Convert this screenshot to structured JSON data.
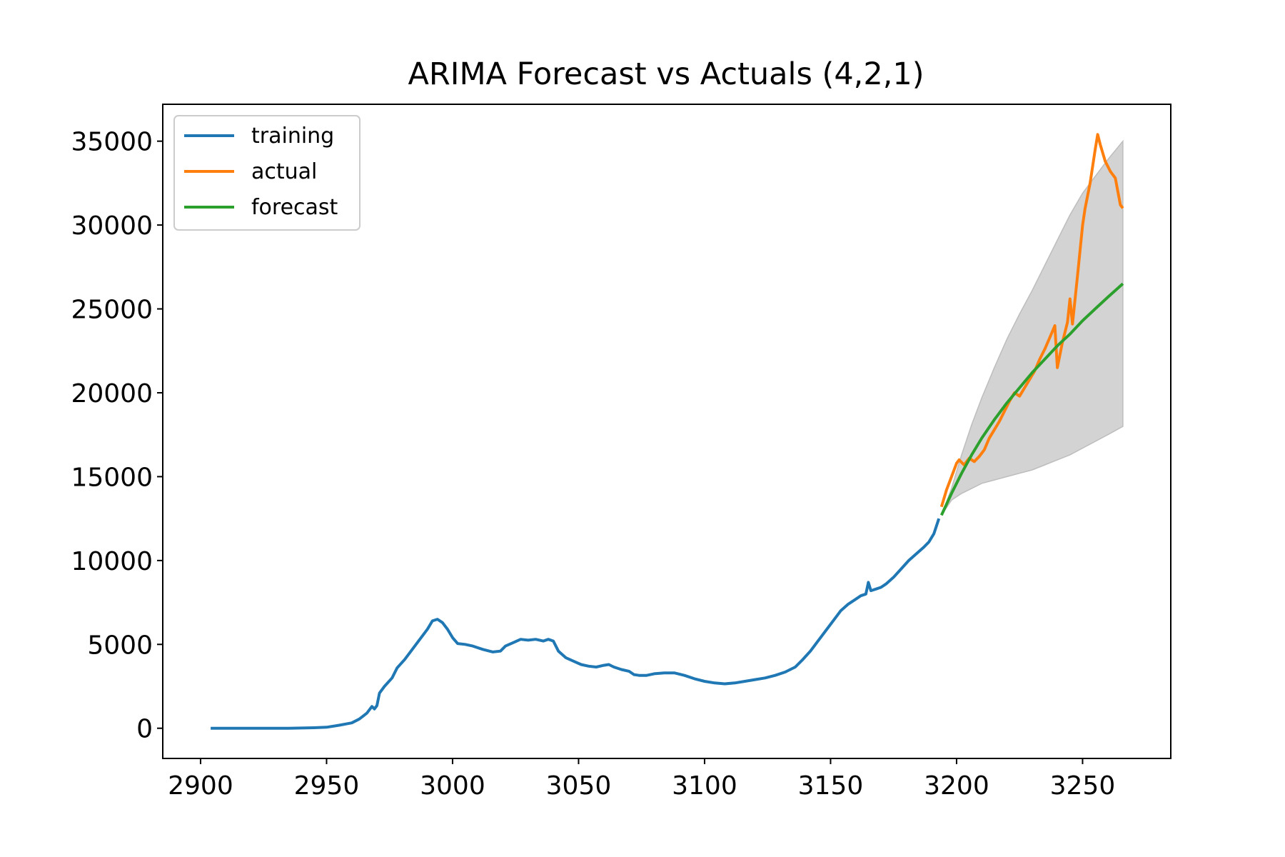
{
  "chart_data": {
    "type": "line",
    "title": "ARIMA Forecast vs Actuals (4,2,1)",
    "xlabel": "",
    "ylabel": "",
    "xlim": [
      2885,
      3285
    ],
    "ylim": [
      -1800,
      37200
    ],
    "x_ticks": [
      2900,
      2950,
      3000,
      3050,
      3100,
      3150,
      3200,
      3250
    ],
    "y_ticks": [
      0,
      5000,
      10000,
      15000,
      20000,
      25000,
      30000,
      35000
    ],
    "grid": false,
    "legend_position": "top-left",
    "series": [
      {
        "name": "training",
        "color": "#1f77b4",
        "points": [
          [
            2904,
            0
          ],
          [
            2920,
            0
          ],
          [
            2935,
            0
          ],
          [
            2945,
            30
          ],
          [
            2950,
            60
          ],
          [
            2955,
            180
          ],
          [
            2960,
            320
          ],
          [
            2963,
            550
          ],
          [
            2966,
            900
          ],
          [
            2968,
            1300
          ],
          [
            2969,
            1150
          ],
          [
            2970,
            1350
          ],
          [
            2971,
            2100
          ],
          [
            2973,
            2500
          ],
          [
            2976,
            3000
          ],
          [
            2978,
            3600
          ],
          [
            2981,
            4100
          ],
          [
            2984,
            4700
          ],
          [
            2987,
            5300
          ],
          [
            2990,
            5900
          ],
          [
            2992,
            6400
          ],
          [
            2994,
            6500
          ],
          [
            2996,
            6300
          ],
          [
            2998,
            5900
          ],
          [
            3000,
            5400
          ],
          [
            3002,
            5050
          ],
          [
            3005,
            5000
          ],
          [
            3008,
            4900
          ],
          [
            3012,
            4700
          ],
          [
            3016,
            4550
          ],
          [
            3019,
            4600
          ],
          [
            3021,
            4900
          ],
          [
            3024,
            5100
          ],
          [
            3027,
            5300
          ],
          [
            3030,
            5250
          ],
          [
            3033,
            5300
          ],
          [
            3036,
            5200
          ],
          [
            3038,
            5300
          ],
          [
            3040,
            5200
          ],
          [
            3042,
            4600
          ],
          [
            3045,
            4200
          ],
          [
            3048,
            4000
          ],
          [
            3051,
            3800
          ],
          [
            3054,
            3700
          ],
          [
            3057,
            3650
          ],
          [
            3060,
            3750
          ],
          [
            3062,
            3800
          ],
          [
            3064,
            3650
          ],
          [
            3067,
            3500
          ],
          [
            3070,
            3400
          ],
          [
            3072,
            3200
          ],
          [
            3074,
            3150
          ],
          [
            3077,
            3150
          ],
          [
            3080,
            3250
          ],
          [
            3084,
            3300
          ],
          [
            3088,
            3300
          ],
          [
            3092,
            3150
          ],
          [
            3096,
            2950
          ],
          [
            3100,
            2800
          ],
          [
            3104,
            2700
          ],
          [
            3108,
            2650
          ],
          [
            3112,
            2700
          ],
          [
            3116,
            2800
          ],
          [
            3120,
            2900
          ],
          [
            3124,
            3000
          ],
          [
            3128,
            3150
          ],
          [
            3132,
            3350
          ],
          [
            3136,
            3650
          ],
          [
            3139,
            4100
          ],
          [
            3142,
            4600
          ],
          [
            3145,
            5200
          ],
          [
            3148,
            5800
          ],
          [
            3151,
            6400
          ],
          [
            3154,
            7000
          ],
          [
            3157,
            7400
          ],
          [
            3160,
            7700
          ],
          [
            3162,
            7900
          ],
          [
            3164,
            8000
          ],
          [
            3165,
            8700
          ],
          [
            3166,
            8200
          ],
          [
            3168,
            8300
          ],
          [
            3170,
            8400
          ],
          [
            3172,
            8600
          ],
          [
            3175,
            9000
          ],
          [
            3178,
            9500
          ],
          [
            3181,
            10000
          ],
          [
            3184,
            10400
          ],
          [
            3187,
            10800
          ],
          [
            3189,
            11100
          ],
          [
            3191,
            11600
          ],
          [
            3193,
            12500
          ]
        ]
      },
      {
        "name": "actual",
        "color": "#ff7f0e",
        "points": [
          [
            3194,
            13200
          ],
          [
            3196,
            14200
          ],
          [
            3198,
            15000
          ],
          [
            3200,
            15800
          ],
          [
            3201,
            16000
          ],
          [
            3203,
            15700
          ],
          [
            3205,
            16100
          ],
          [
            3207,
            15900
          ],
          [
            3209,
            16200
          ],
          [
            3211,
            16600
          ],
          [
            3213,
            17300
          ],
          [
            3215,
            17800
          ],
          [
            3217,
            18300
          ],
          [
            3219,
            18900
          ],
          [
            3221,
            19500
          ],
          [
            3223,
            20000
          ],
          [
            3225,
            19800
          ],
          [
            3227,
            20300
          ],
          [
            3229,
            20800
          ],
          [
            3231,
            21300
          ],
          [
            3233,
            22000
          ],
          [
            3235,
            22600
          ],
          [
            3237,
            23300
          ],
          [
            3239,
            24000
          ],
          [
            3240,
            21500
          ],
          [
            3242,
            23000
          ],
          [
            3244,
            24200
          ],
          [
            3245,
            25600
          ],
          [
            3246,
            24100
          ],
          [
            3248,
            27000
          ],
          [
            3250,
            30000
          ],
          [
            3251,
            31000
          ],
          [
            3253,
            32500
          ],
          [
            3255,
            34500
          ],
          [
            3256,
            35400
          ],
          [
            3257,
            34800
          ],
          [
            3259,
            33800
          ],
          [
            3261,
            33200
          ],
          [
            3263,
            32800
          ],
          [
            3265,
            31200
          ],
          [
            3266,
            31000
          ]
        ]
      },
      {
        "name": "forecast",
        "color": "#2ca02c",
        "points": [
          [
            3194,
            12700
          ],
          [
            3198,
            14000
          ],
          [
            3202,
            15200
          ],
          [
            3206,
            16300
          ],
          [
            3210,
            17300
          ],
          [
            3215,
            18400
          ],
          [
            3220,
            19400
          ],
          [
            3225,
            20300
          ],
          [
            3230,
            21200
          ],
          [
            3235,
            22000
          ],
          [
            3240,
            22800
          ],
          [
            3245,
            23500
          ],
          [
            3250,
            24300
          ],
          [
            3255,
            25000
          ],
          [
            3260,
            25700
          ],
          [
            3266,
            26500
          ]
        ]
      }
    ],
    "confidence_band": {
      "color": "#d3d3d3",
      "x": [
        3194,
        3198,
        3202,
        3206,
        3210,
        3215,
        3220,
        3225,
        3230,
        3235,
        3240,
        3245,
        3250,
        3255,
        3260,
        3266
      ],
      "lower": [
        12700,
        13600,
        14000,
        14300,
        14600,
        14800,
        15000,
        15200,
        15400,
        15700,
        16000,
        16300,
        16700,
        17100,
        17500,
        18000
      ],
      "upper": [
        12700,
        14300,
        16300,
        18100,
        19700,
        21500,
        23200,
        24700,
        26100,
        27600,
        29100,
        30600,
        31900,
        32900,
        33900,
        35000
      ]
    }
  }
}
